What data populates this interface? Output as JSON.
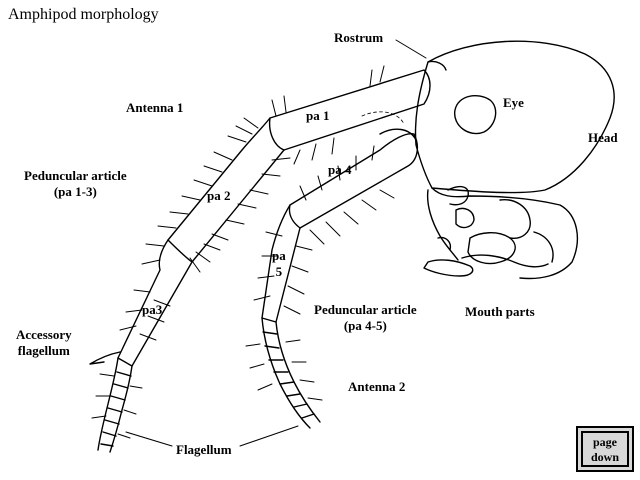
{
  "title": "Amphipod morphology",
  "labels": {
    "rostrum": "Rostrum",
    "eye": "Eye",
    "head": "Head",
    "antenna1": "Antenna 1",
    "pa1": "pa 1",
    "pa2": "pa 2",
    "pa3": "pa3",
    "pa4": "pa 4",
    "pa5_line1": "pa",
    "pa5_line2": "5",
    "peduncular13_line1": "Peduncular article",
    "peduncular13_line2": "(pa 1-3)",
    "peduncular45_line1": "Peduncular article",
    "peduncular45_line2": "(pa 4-5)",
    "accessory_line1": "Accessory",
    "accessory_line2": "flagellum",
    "mouth_parts": "Mouth parts",
    "antenna2": "Antenna 2",
    "flagellum": "Flagellum"
  },
  "nav": {
    "page_down_line1": "page",
    "page_down_line2": "down"
  }
}
